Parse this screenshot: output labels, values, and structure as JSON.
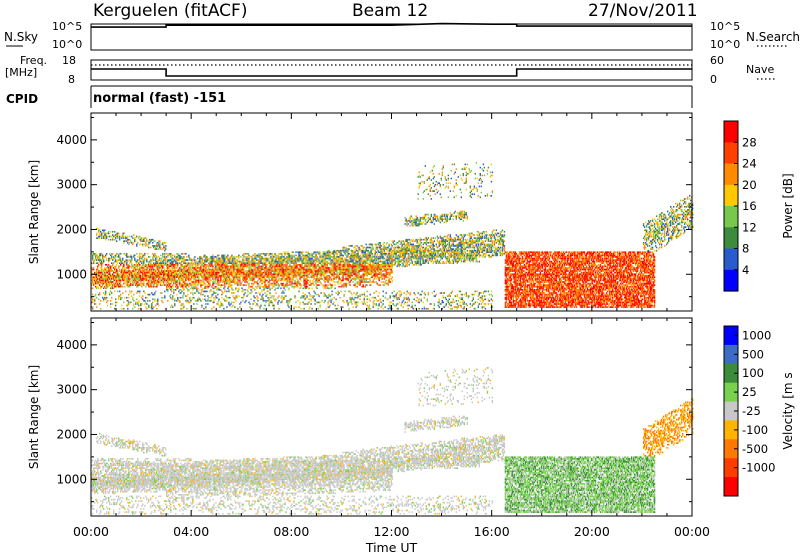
{
  "header": {
    "station": "Kerguelen (fitACF)",
    "beam": "Beam 12",
    "date": "27/Nov/2011"
  },
  "sky_panel": {
    "left_label": "N.Sky",
    "right_label": "N.Search",
    "ticks_left": [
      "10^5",
      "10^0"
    ],
    "ticks_right": [
      "10^5",
      "10^0"
    ]
  },
  "freq_panel": {
    "left_label_1": "Freq.",
    "left_label_2": "[MHz]",
    "right_label": "Nave",
    "ticks_left": [
      "18",
      "8"
    ],
    "ticks_right": [
      "60",
      "0"
    ]
  },
  "cpid": {
    "label": "CPID",
    "value": "normal (fast) -151"
  },
  "colors": {
    "power_scale": [
      "#0000ff",
      "#2a5ad0",
      "#3c8c3c",
      "#78c850",
      "#ffc800",
      "#ff8c00",
      "#ff4000",
      "#ff0000"
    ],
    "velocity_scale": [
      "#0000ff",
      "#3c6cc8",
      "#3c8c3c",
      "#78d250",
      "#c8c8c8",
      "#ffb400",
      "#ff7800",
      "#ff3c00",
      "#ff0000"
    ]
  },
  "chart_data": [
    {
      "type": "line",
      "title": "",
      "xlabel": "",
      "ylabel": "N.Sky",
      "x": [
        "00:00",
        "03:00",
        "03:00",
        "12:00",
        "14:00",
        "16:00",
        "17:00",
        "17:00",
        "24:00"
      ],
      "values": [
        25000,
        25000,
        60000,
        60000,
        120000,
        90000,
        90000,
        40000,
        40000
      ],
      "scale": "log",
      "ylim": [
        1,
        100000
      ]
    },
    {
      "type": "line",
      "title": "",
      "xlabel": "",
      "ylabel": "Freq. [MHz]",
      "x": [
        "00:00",
        "03:00",
        "03:00",
        "17:00",
        "17:00",
        "24:00"
      ],
      "series": [
        {
          "name": "Freq",
          "values": [
            13.5,
            13.5,
            10,
            10,
            13.5,
            13.5
          ]
        },
        {
          "name": "Nave",
          "values": [
            45,
            45,
            45,
            45,
            45,
            45
          ]
        }
      ],
      "ylim": [
        8,
        18
      ]
    },
    {
      "type": "heatmap",
      "title": "",
      "xlabel": "",
      "ylabel": "Slant Range [km]",
      "x_ticks": [
        "00:00",
        "04:00",
        "08:00",
        "12:00",
        "16:00",
        "20:00",
        "00:00"
      ],
      "y_ticks": [
        "1000",
        "2000",
        "3000",
        "4000"
      ],
      "ylim": [
        180,
        4600
      ],
      "colorbar": {
        "label": "Power [dB]",
        "ticks": [
          "4",
          "8",
          "12",
          "16",
          "20",
          "24",
          "28"
        ]
      }
    },
    {
      "type": "heatmap",
      "title": "",
      "xlabel": "Time UT",
      "ylabel": "Slant Range [km]",
      "x_ticks": [
        "00:00",
        "04:00",
        "08:00",
        "12:00",
        "16:00",
        "20:00",
        "00:00"
      ],
      "y_ticks": [
        "1000",
        "2000",
        "3000",
        "4000"
      ],
      "ylim": [
        180,
        4600
      ],
      "colorbar": {
        "label": "Velocity [m s",
        "ticks": [
          "1000",
          "500",
          "100",
          "25",
          "-25",
          "-100",
          "-500",
          "-1000"
        ]
      }
    }
  ]
}
